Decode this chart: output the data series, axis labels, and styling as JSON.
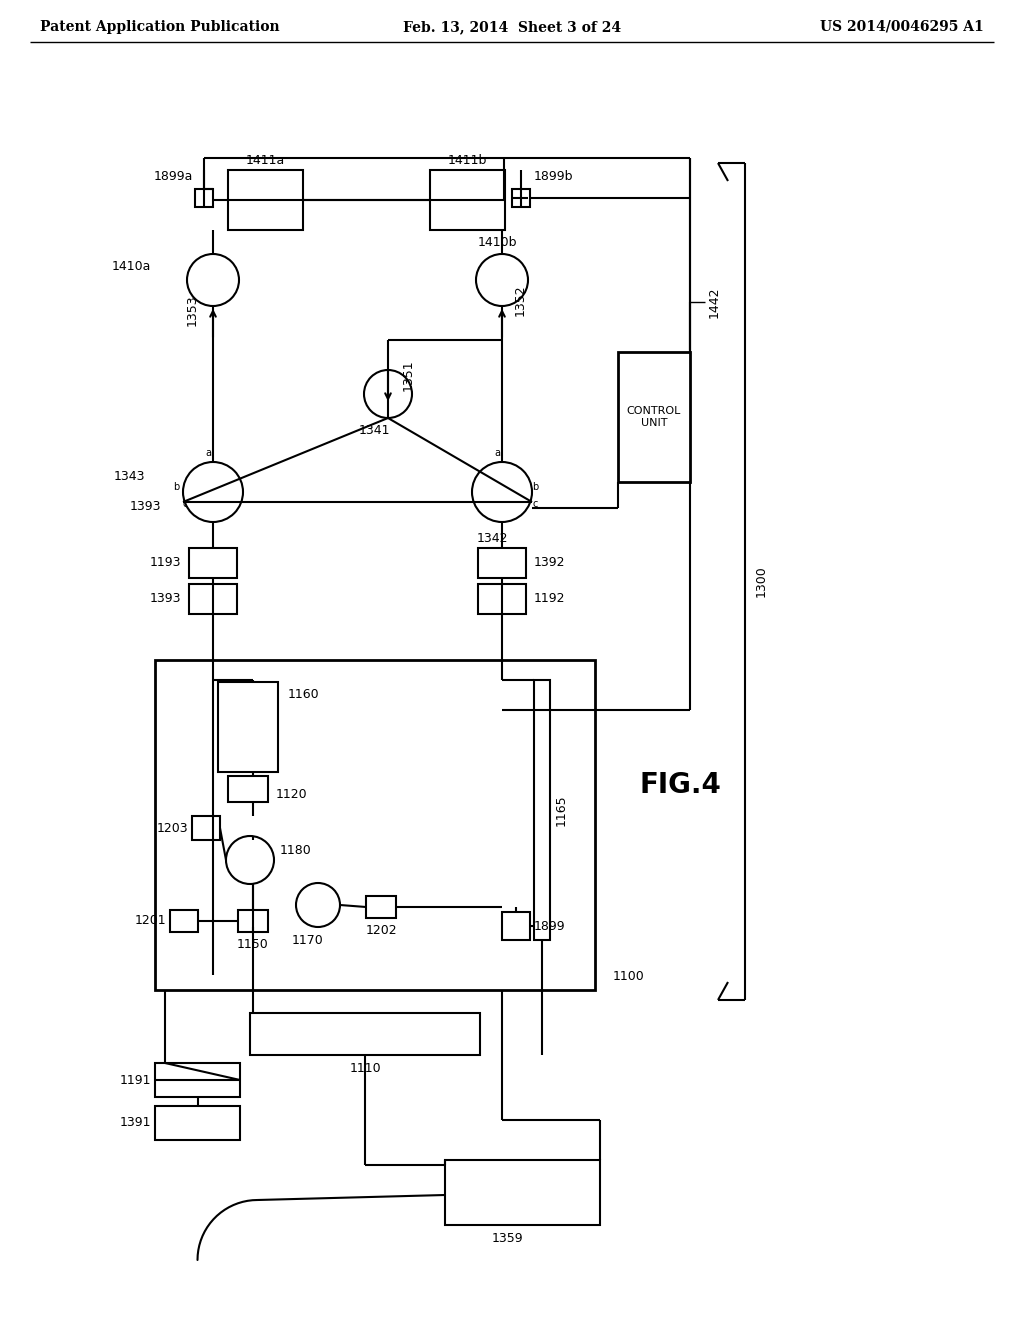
{
  "header_left": "Patent Application Publication",
  "header_mid": "Feb. 13, 2014  Sheet 3 of 24",
  "header_right": "US 2014/0046295 A1",
  "fig_label": "FIG.4",
  "bg_color": "#ffffff",
  "line_color": "#000000",
  "fig_label_fontsize": 20,
  "header_fontsize": 10,
  "label_fontsize": 9
}
